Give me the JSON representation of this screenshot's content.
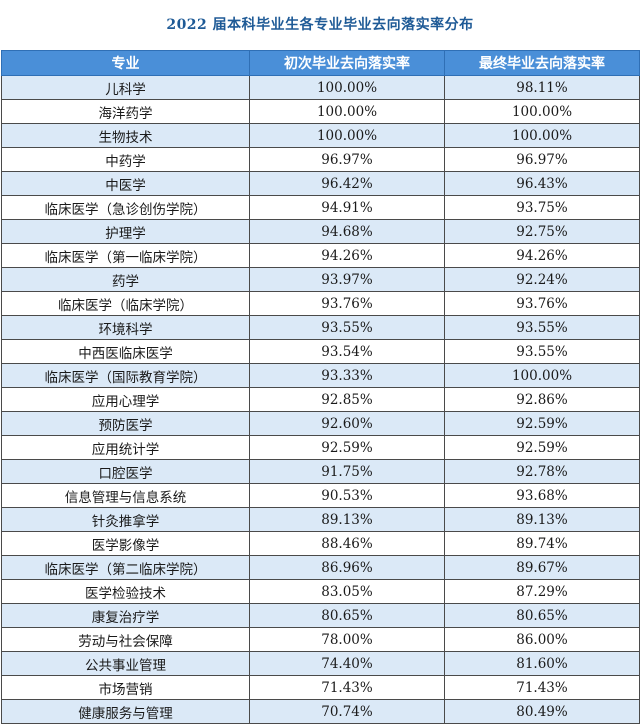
{
  "title": "2022 届本科毕业生各专业毕业去向落实率分布",
  "columns": [
    "专业",
    "初次毕业去向落实率",
    "最终毕业去向落实率"
  ],
  "rows": [
    [
      "儿科学",
      "100.00%",
      "98.11%"
    ],
    [
      "海洋药学",
      "100.00%",
      "100.00%"
    ],
    [
      "生物技术",
      "100.00%",
      "100.00%"
    ],
    [
      "中药学",
      "96.97%",
      "96.97%"
    ],
    [
      "中医学",
      "96.42%",
      "96.43%"
    ],
    [
      "临床医学（急诊创伤学院）",
      "94.91%",
      "93.75%"
    ],
    [
      "护理学",
      "94.68%",
      "92.75%"
    ],
    [
      "临床医学（第一临床学院）",
      "94.26%",
      "94.26%"
    ],
    [
      "药学",
      "93.97%",
      "92.24%"
    ],
    [
      "临床医学（临床学院）",
      "93.76%",
      "93.76%"
    ],
    [
      "环境科学",
      "93.55%",
      "93.55%"
    ],
    [
      "中西医临床医学",
      "93.54%",
      "93.55%"
    ],
    [
      "临床医学（国际教育学院）",
      "93.33%",
      "100.00%"
    ],
    [
      "应用心理学",
      "92.85%",
      "92.86%"
    ],
    [
      "预防医学",
      "92.60%",
      "92.59%"
    ],
    [
      "应用统计学",
      "92.59%",
      "92.59%"
    ],
    [
      "口腔医学",
      "91.75%",
      "92.78%"
    ],
    [
      "信息管理与信息系统",
      "90.53%",
      "93.68%"
    ],
    [
      "针灸推拿学",
      "89.13%",
      "89.13%"
    ],
    [
      "医学影像学",
      "88.46%",
      "89.74%"
    ],
    [
      "临床医学（第二临床学院）",
      "86.96%",
      "89.67%"
    ],
    [
      "医学检验技术",
      "83.05%",
      "87.29%"
    ],
    [
      "康复治疗学",
      "80.65%",
      "80.65%"
    ],
    [
      "劳动与社会保障",
      "78.00%",
      "86.00%"
    ],
    [
      "公共事业管理",
      "74.40%",
      "81.60%"
    ],
    [
      "市场营销",
      "71.43%",
      "71.43%"
    ],
    [
      "健康服务与管理",
      "70.74%",
      "80.49%"
    ]
  ]
}
